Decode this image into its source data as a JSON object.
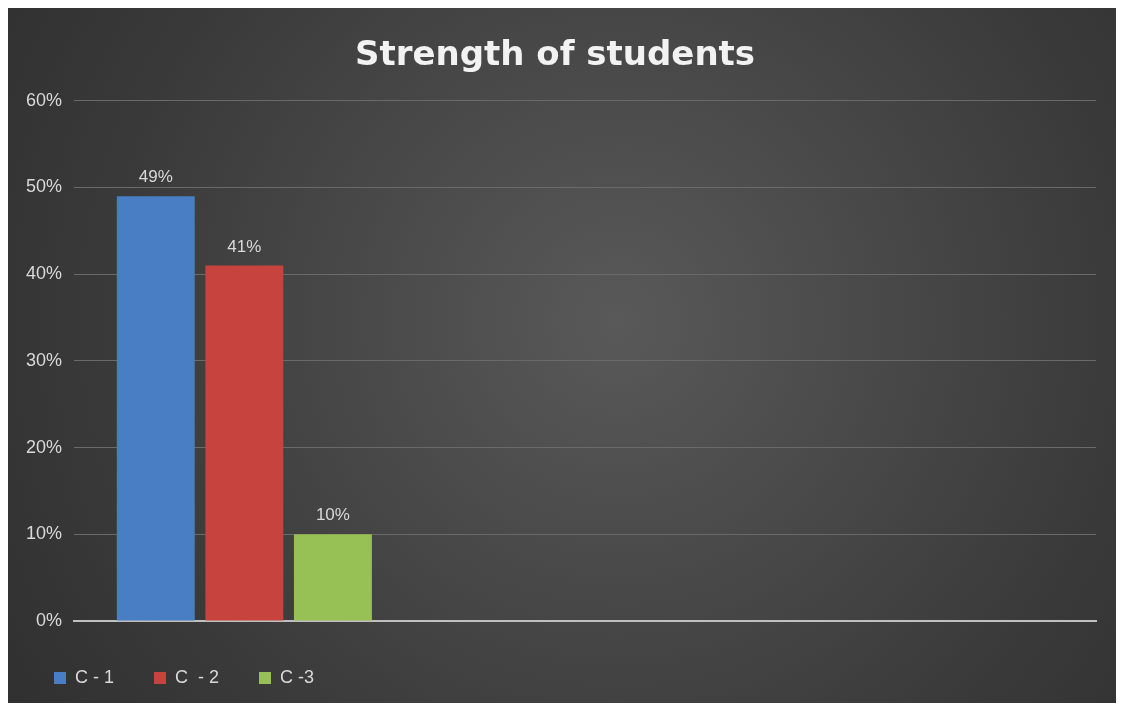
{
  "chart_data": {
    "type": "bar",
    "title": "Strength of students",
    "categories": [
      null,
      null,
      null
    ],
    "series": [
      {
        "name": "C - 1",
        "color": "#4a7ec4",
        "values": [
          49,
          null,
          null
        ],
        "value_labels": [
          "49%",
          null,
          null
        ]
      },
      {
        "name": "C  - 2",
        "color": "#c6443d",
        "values": [
          41,
          null,
          null
        ],
        "value_labels": [
          "41%",
          null,
          null
        ]
      },
      {
        "name": "C -3",
        "color": "#98c155",
        "values": [
          10,
          null,
          null
        ],
        "value_labels": [
          "10%",
          null,
          null
        ]
      }
    ],
    "ylim": [
      0,
      60
    ],
    "yticks": [
      {
        "value": 0,
        "label": "0%"
      },
      {
        "value": 10,
        "label": "10%"
      },
      {
        "value": 20,
        "label": "20%"
      },
      {
        "value": 30,
        "label": "30%"
      },
      {
        "value": 40,
        "label": "40%"
      },
      {
        "value": 50,
        "label": "50%"
      },
      {
        "value": 60,
        "label": "60%"
      }
    ],
    "grid": "y",
    "legend": "bottom left"
  }
}
